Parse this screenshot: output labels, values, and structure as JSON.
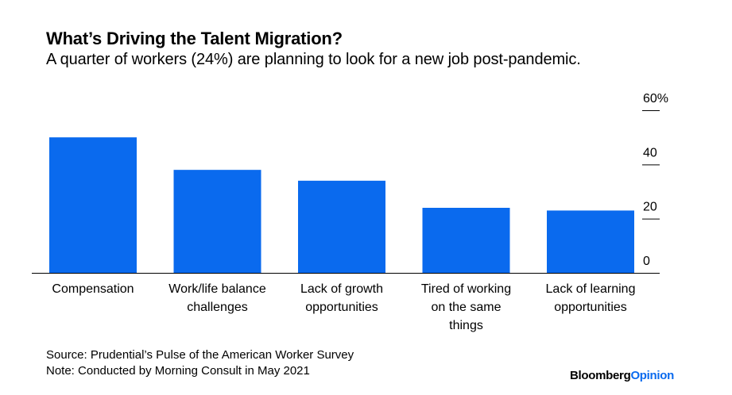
{
  "header": {
    "title": "What’s Driving the Talent Migration?",
    "subtitle": "A quarter of workers (24%) are planning to look for a new job post-pandemic."
  },
  "chart_data": {
    "type": "bar",
    "categories": [
      "Compensation",
      "Work/life balance challenges",
      "Lack of growth opportunities",
      "Tired of working on the same things",
      "Lack of learning opportunities"
    ],
    "category_lines": [
      [
        "Compensation"
      ],
      [
        "Work/life balance",
        "challenges"
      ],
      [
        "Lack of growth",
        "opportunities"
      ],
      [
        "Tired of working",
        "on the same",
        "things"
      ],
      [
        "Lack of learning",
        "opportunities"
      ]
    ],
    "values": [
      50,
      38,
      34,
      24,
      23
    ],
    "ylim": [
      0,
      60
    ],
    "yticks": [
      0,
      20,
      40,
      60
    ],
    "ytick_labels": [
      "0",
      "20",
      "40",
      "60%"
    ],
    "y_axis_side": "right",
    "grid": false,
    "bar_color": "#0a6aee"
  },
  "footer": {
    "source": "Source: Prudential’s Pulse of the American Worker Survey",
    "note": "Note: Conducted by Morning Consult in May 2021"
  },
  "branding": {
    "brand": "Bloomberg",
    "section": "Opinion"
  }
}
